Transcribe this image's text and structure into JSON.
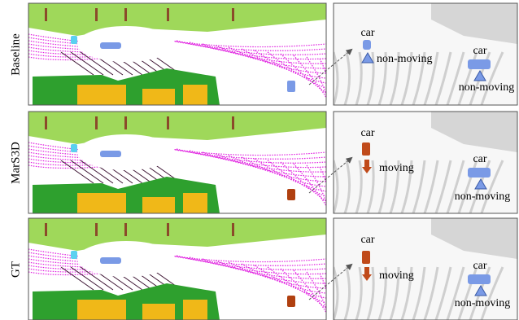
{
  "rows": [
    {
      "label": "Baseline",
      "objects": [
        {
          "class": "car",
          "state": "non-moving"
        },
        {
          "class": "car",
          "state": "non-moving"
        }
      ]
    },
    {
      "label": "MarS3D",
      "objects": [
        {
          "class": "car",
          "state": "moving"
        },
        {
          "class": "car",
          "state": "non-moving"
        }
      ]
    },
    {
      "label": "GT",
      "objects": [
        {
          "class": "car",
          "state": "moving"
        },
        {
          "class": "car",
          "state": "non-moving"
        }
      ]
    }
  ]
}
